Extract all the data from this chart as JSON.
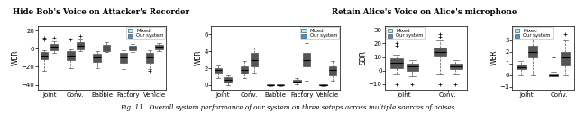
{
  "title1": "Hide Bob's Voice on Attacker's Recorder",
  "title2": "Retain Alice's Voice on Alice's microphone",
  "caption": "Fig. 11.  Overall system performance of our system on three setups across multiple sources of noises.",
  "color_mixed": "#aaeeff",
  "color_system": "#3399dd",
  "legend_labels": [
    "Mixed",
    "Our system"
  ],
  "plot1_ylabel": "WER",
  "plot1_categories": [
    "Joint",
    "Conv.",
    "Babble",
    "Factory",
    "Vehicle"
  ],
  "plot1_mixed_stats": [
    {
      "med": -8,
      "q1": -12,
      "q3": -4,
      "whislo": -25,
      "whishi": -2,
      "fliers_low": [],
      "fliers_high": [
        10,
        12
      ]
    },
    {
      "med": -8,
      "q1": -13,
      "q3": -3,
      "whislo": -22,
      "whishi": -1,
      "fliers_low": [],
      "fliers_high": [
        10
      ]
    },
    {
      "med": -10,
      "q1": -15,
      "q3": -6,
      "whislo": -22,
      "whishi": -3,
      "fliers_low": [],
      "fliers_high": []
    },
    {
      "med": -10,
      "q1": -16,
      "q3": -5,
      "whislo": -23,
      "whishi": -2,
      "fliers_low": [],
      "fliers_high": []
    },
    {
      "med": -10,
      "q1": -16,
      "q3": -5,
      "whislo": -23,
      "whishi": -2,
      "fliers_low": [],
      "fliers_high": [
        -25
      ]
    }
  ],
  "plot1_system_stats": [
    {
      "med": 2,
      "q1": -2,
      "q3": 5,
      "whislo": -5,
      "whishi": 8,
      "fliers_low": [],
      "fliers_high": [
        12
      ]
    },
    {
      "med": 3,
      "q1": -1,
      "q3": 7,
      "whislo": -3,
      "whishi": 10,
      "fliers_low": [],
      "fliers_high": [
        14
      ]
    },
    {
      "med": 1,
      "q1": -3,
      "q3": 4,
      "whislo": -4,
      "whishi": 7,
      "fliers_low": [],
      "fliers_high": []
    },
    {
      "med": 1,
      "q1": -2,
      "q3": 3,
      "whislo": -4,
      "whishi": 5,
      "fliers_low": [],
      "fliers_high": []
    },
    {
      "med": 2,
      "q1": -1,
      "q3": 4,
      "whislo": -3,
      "whishi": 6,
      "fliers_low": [],
      "fliers_high": []
    }
  ],
  "plot1_ylim": [
    -45,
    25
  ],
  "plot1_yticks": [
    -40,
    -20,
    0,
    20
  ],
  "plot2_ylabel": "WER",
  "plot2_categories": [
    "Joint",
    "Conv.",
    "Babble",
    "Factory",
    "Vehicle"
  ],
  "plot2_mixed_stats": [
    {
      "med": 1.8,
      "q1": 1.5,
      "q3": 2.0,
      "whislo": 0.8,
      "whishi": 2.3,
      "fliers_low": [],
      "fliers_high": []
    },
    {
      "med": 1.8,
      "q1": 1.4,
      "q3": 2.2,
      "whislo": 0.8,
      "whishi": 2.8,
      "fliers_low": [],
      "fliers_high": []
    },
    {
      "med": 0.0,
      "q1": -0.05,
      "q3": 0.05,
      "whislo": -0.1,
      "whishi": 0.1,
      "fliers_low": [],
      "fliers_high": []
    },
    {
      "med": 0.4,
      "q1": 0.3,
      "q3": 0.6,
      "whislo": 0.1,
      "whishi": 0.8,
      "fliers_low": [],
      "fliers_high": []
    },
    {
      "med": 0.0,
      "q1": -0.05,
      "q3": 0.05,
      "whislo": -0.1,
      "whishi": 0.1,
      "fliers_low": [],
      "fliers_high": []
    }
  ],
  "plot2_system_stats": [
    {
      "med": 0.6,
      "q1": 0.3,
      "q3": 0.9,
      "whislo": 0.0,
      "whishi": 1.2,
      "fliers_low": [],
      "fliers_high": []
    },
    {
      "med": 3.0,
      "q1": 2.2,
      "q3": 3.8,
      "whislo": 1.5,
      "whishi": 4.5,
      "fliers_low": [],
      "fliers_high": []
    },
    {
      "med": 0.0,
      "q1": -0.05,
      "q3": 0.05,
      "whislo": -0.1,
      "whishi": 0.1,
      "fliers_low": [],
      "fliers_high": []
    },
    {
      "med": 3.0,
      "q1": 2.2,
      "q3": 3.8,
      "whislo": 0.5,
      "whishi": 5.0,
      "fliers_low": [],
      "fliers_high": []
    },
    {
      "med": 1.8,
      "q1": 1.2,
      "q3": 2.2,
      "whislo": 0.5,
      "whishi": 2.8,
      "fliers_low": [],
      "fliers_high": []
    }
  ],
  "plot2_ylim": [
    -0.5,
    7
  ],
  "plot2_yticks": [
    0,
    2,
    4,
    6
  ],
  "plot3_ylabel": "SDR",
  "plot3_categories": [
    "Joint",
    "Conv."
  ],
  "plot3_mixed_stats": [
    {
      "med": 6,
      "q1": 2,
      "q3": 9,
      "whislo": -3,
      "whishi": 12,
      "fliers_low": [
        -10
      ],
      "fliers_high": [
        18,
        20
      ]
    },
    {
      "med": 14,
      "q1": 11,
      "q3": 17,
      "whislo": -3,
      "whishi": 22,
      "fliers_low": [
        -10
      ],
      "fliers_high": [
        25,
        27
      ]
    }
  ],
  "plot3_system_stats": [
    {
      "med": 3,
      "q1": 0,
      "q3": 5,
      "whislo": -4,
      "whishi": 8,
      "fliers_low": [
        -10
      ],
      "fliers_high": []
    },
    {
      "med": 3,
      "q1": 1,
      "q3": 5,
      "whislo": -3,
      "whishi": 8,
      "fliers_low": [
        -10
      ],
      "fliers_high": []
    }
  ],
  "plot3_ylim": [
    -14,
    33
  ],
  "plot3_yticks": [
    -10,
    0,
    10,
    20,
    30
  ],
  "plot4_ylabel": "WER",
  "plot4_categories": [
    "Joint",
    "Conv."
  ],
  "plot4_mixed_stats": [
    {
      "med": 0.7,
      "q1": 0.5,
      "q3": 0.9,
      "whislo": 0.0,
      "whishi": 1.2,
      "fliers_low": [],
      "fliers_high": []
    },
    {
      "med": 0.0,
      "q1": -0.05,
      "q3": 0.1,
      "whislo": -0.1,
      "whishi": 0.3,
      "fliers_low": [],
      "fliers_high": [
        1.5
      ]
    }
  ],
  "plot4_system_stats": [
    {
      "med": 2.0,
      "q1": 1.5,
      "q3": 2.5,
      "whislo": 0.0,
      "whishi": 3.2,
      "fliers_low": [],
      "fliers_high": [
        3.5
      ]
    },
    {
      "med": 1.5,
      "q1": 0.8,
      "q3": 2.0,
      "whislo": 0.0,
      "whishi": 3.0,
      "fliers_low": [],
      "fliers_high": [
        3.5
      ]
    }
  ],
  "plot4_ylim": [
    -1.2,
    4.2
  ],
  "plot4_yticks": [
    -1,
    0,
    1,
    2,
    3
  ]
}
